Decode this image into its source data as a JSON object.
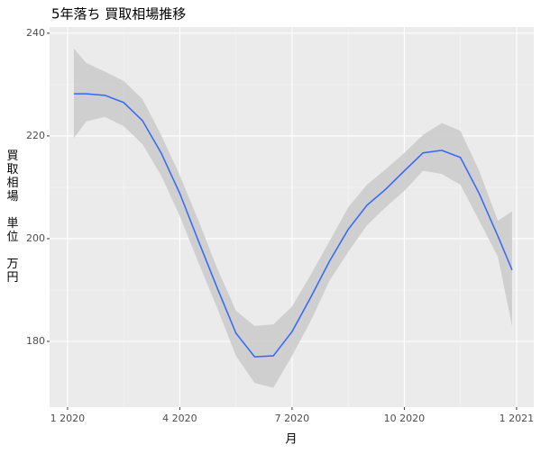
{
  "chart_data": {
    "type": "line",
    "title": "5年落ち 買取相場推移",
    "x_label": "月",
    "y_label": "買取相場　単位　万円",
    "x": [
      0.17,
      0.5,
      1.0,
      1.5,
      2.0,
      2.5,
      3.0,
      3.5,
      4.0,
      4.5,
      5.0,
      5.5,
      6.0,
      6.5,
      7.0,
      7.5,
      8.0,
      8.5,
      9.0,
      9.5,
      10.0,
      10.5,
      11.0,
      11.5,
      11.88
    ],
    "series": [
      {
        "color": "#3366ff",
        "values": [
          228.2,
          228.2,
          227.9,
          226.5,
          223,
          216.7,
          208.8,
          199.5,
          190.4,
          181.6,
          177,
          177.2,
          181.9,
          188.6,
          195.6,
          201.8,
          206.5,
          209.6,
          213.2,
          216.7,
          217.2,
          215.8,
          208.8,
          200.5,
          193.9
        ]
      }
    ],
    "band": {
      "color": "#cccccc",
      "upper": [
        237,
        234.2,
        232.5,
        230.7,
        227.2,
        220.2,
        212.3,
        203.5,
        194.2,
        186,
        183,
        183.3,
        186.8,
        193,
        199.5,
        206.1,
        210.5,
        213.5,
        216.7,
        220.2,
        222.5,
        221,
        213.2,
        203.5,
        205.3
      ],
      "lower": [
        219.6,
        222.8,
        223.7,
        221.9,
        218.4,
        212.3,
        204.4,
        195.3,
        186.5,
        177.2,
        171.9,
        171,
        177.2,
        184,
        191.8,
        197.4,
        202.6,
        206.1,
        209.3,
        213.2,
        212.6,
        210.5,
        203.5,
        196.5,
        183
      ]
    },
    "xlim": [
      -0.48,
      12.46
    ],
    "xticks": [
      {
        "value": 0,
        "label": "1 2020"
      },
      {
        "value": 3,
        "label": "4 2020"
      },
      {
        "value": 6,
        "label": "7 2020"
      },
      {
        "value": 9,
        "label": "10 2020"
      },
      {
        "value": 12,
        "label": "1 2021"
      }
    ],
    "ylim": [
      167.2,
      241.2
    ],
    "yticks": [
      180,
      200,
      220,
      240
    ],
    "grid": true
  }
}
